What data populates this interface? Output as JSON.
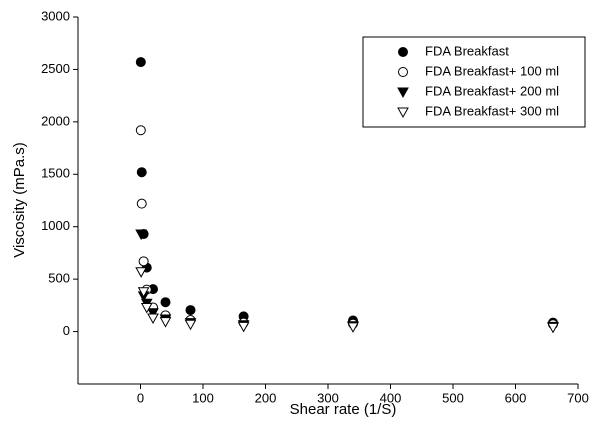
{
  "chart_data": {
    "type": "scatter",
    "xlabel": "Shear rate (1/S)",
    "ylabel": "Viscosity (mPa.s)",
    "xlim": [
      -100,
      700
    ],
    "xticks": [
      0,
      100,
      200,
      300,
      400,
      500,
      600,
      700
    ],
    "ylim": [
      -500,
      3000
    ],
    "yticks": [
      0,
      500,
      1000,
      1500,
      2000,
      2500,
      3000
    ],
    "legend": "upper right",
    "series": [
      {
        "name": "FDA Breakfast",
        "marker": "circle",
        "filled": true,
        "color": "#000000",
        "x": [
          0.5,
          2,
          5,
          10,
          20,
          40,
          80,
          165,
          340,
          660
        ],
        "values": [
          2570,
          1520,
          930,
          610,
          405,
          280,
          205,
          145,
          105,
          85
        ]
      },
      {
        "name": "FDA Breakfast+ 100 ml",
        "marker": "circle",
        "filled": false,
        "color": "#000000",
        "x": [
          0.5,
          2,
          5,
          10,
          20,
          40,
          80,
          165,
          340,
          660
        ],
        "values": [
          1920,
          1220,
          670,
          400,
          230,
          155,
          110,
          85,
          75,
          70
        ]
      },
      {
        "name": "FDA Breakfast+ 200 ml",
        "marker": "triangle",
        "filled": true,
        "color": "#000000",
        "x": [
          1,
          5,
          10,
          20,
          40,
          80,
          165,
          340,
          660
        ],
        "values": [
          930,
          340,
          270,
          180,
          120,
          85,
          65,
          55,
          50
        ]
      },
      {
        "name": "FDA Breakfast+ 300 ml",
        "marker": "triangle",
        "filled": false,
        "color": "#000000",
        "x": [
          1,
          5,
          10,
          20,
          40,
          80,
          165,
          340,
          660
        ],
        "values": [
          570,
          380,
          230,
          130,
          95,
          70,
          50,
          45,
          40
        ]
      }
    ]
  }
}
